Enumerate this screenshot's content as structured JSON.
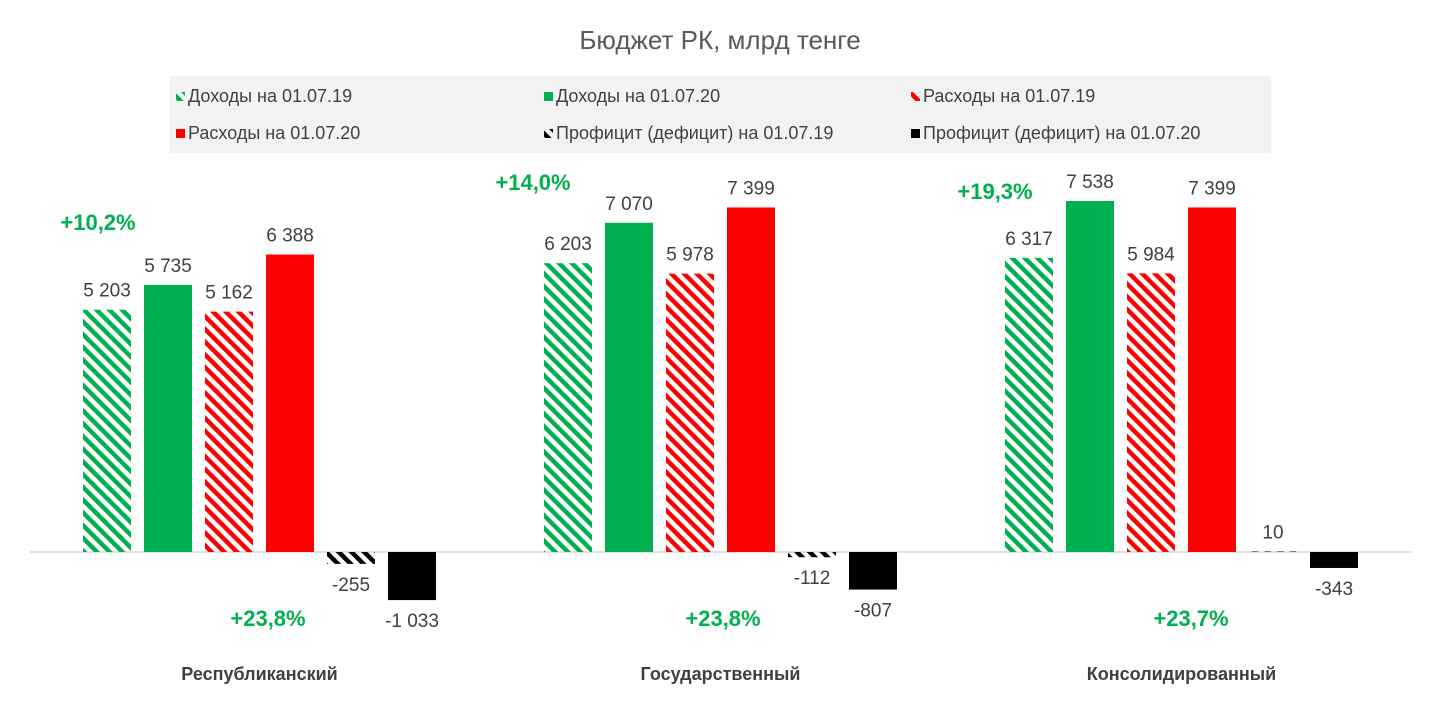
{
  "chart_data": {
    "type": "bar",
    "title": "Бюджет РК, млрд тенге",
    "categories": [
      "Республиканский",
      "Государственный",
      "Консолидированный"
    ],
    "series": [
      {
        "name": "Доходы на 01.07.19",
        "color": "#00b050",
        "hatch": true,
        "values": [
          5203,
          6203,
          6317
        ],
        "value_labels": [
          "5 203",
          "6 203",
          "6 317"
        ]
      },
      {
        "name": "Доходы на 01.07.20",
        "color": "#00b050",
        "hatch": false,
        "values": [
          5735,
          7070,
          7538
        ],
        "value_labels": [
          "5 735",
          "7 070",
          "7 538"
        ]
      },
      {
        "name": "Расходы на 01.07.19",
        "color": "#ff0000",
        "hatch": true,
        "values": [
          5162,
          5978,
          5984
        ],
        "value_labels": [
          "5 162",
          "5 978",
          "5 984"
        ]
      },
      {
        "name": "Расходы на 01.07.20",
        "color": "#ff0000",
        "hatch": false,
        "values": [
          6388,
          7399,
          7399
        ],
        "value_labels": [
          "6 388",
          "7 399",
          "7 399"
        ]
      },
      {
        "name": "Профицит (дефицит) на 01.07.19",
        "color": "#000000",
        "hatch": true,
        "values": [
          -255,
          -112,
          10
        ]
      },
      {
        "name": "Профицит (дефицит) на 01.07.20",
        "color": "#000000",
        "hatch": false,
        "values": [
          -1033,
          -807,
          -343
        ],
        "value_labels": [
          "-1 033",
          "-807",
          "-343"
        ]
      }
    ],
    "annotations": [
      "+10,2%",
      "+23,8%",
      "+14,0%",
      "+23,8%",
      "+19,3%",
      "+23,7%"
    ],
    "annotation_color": "#00b050"
  }
}
